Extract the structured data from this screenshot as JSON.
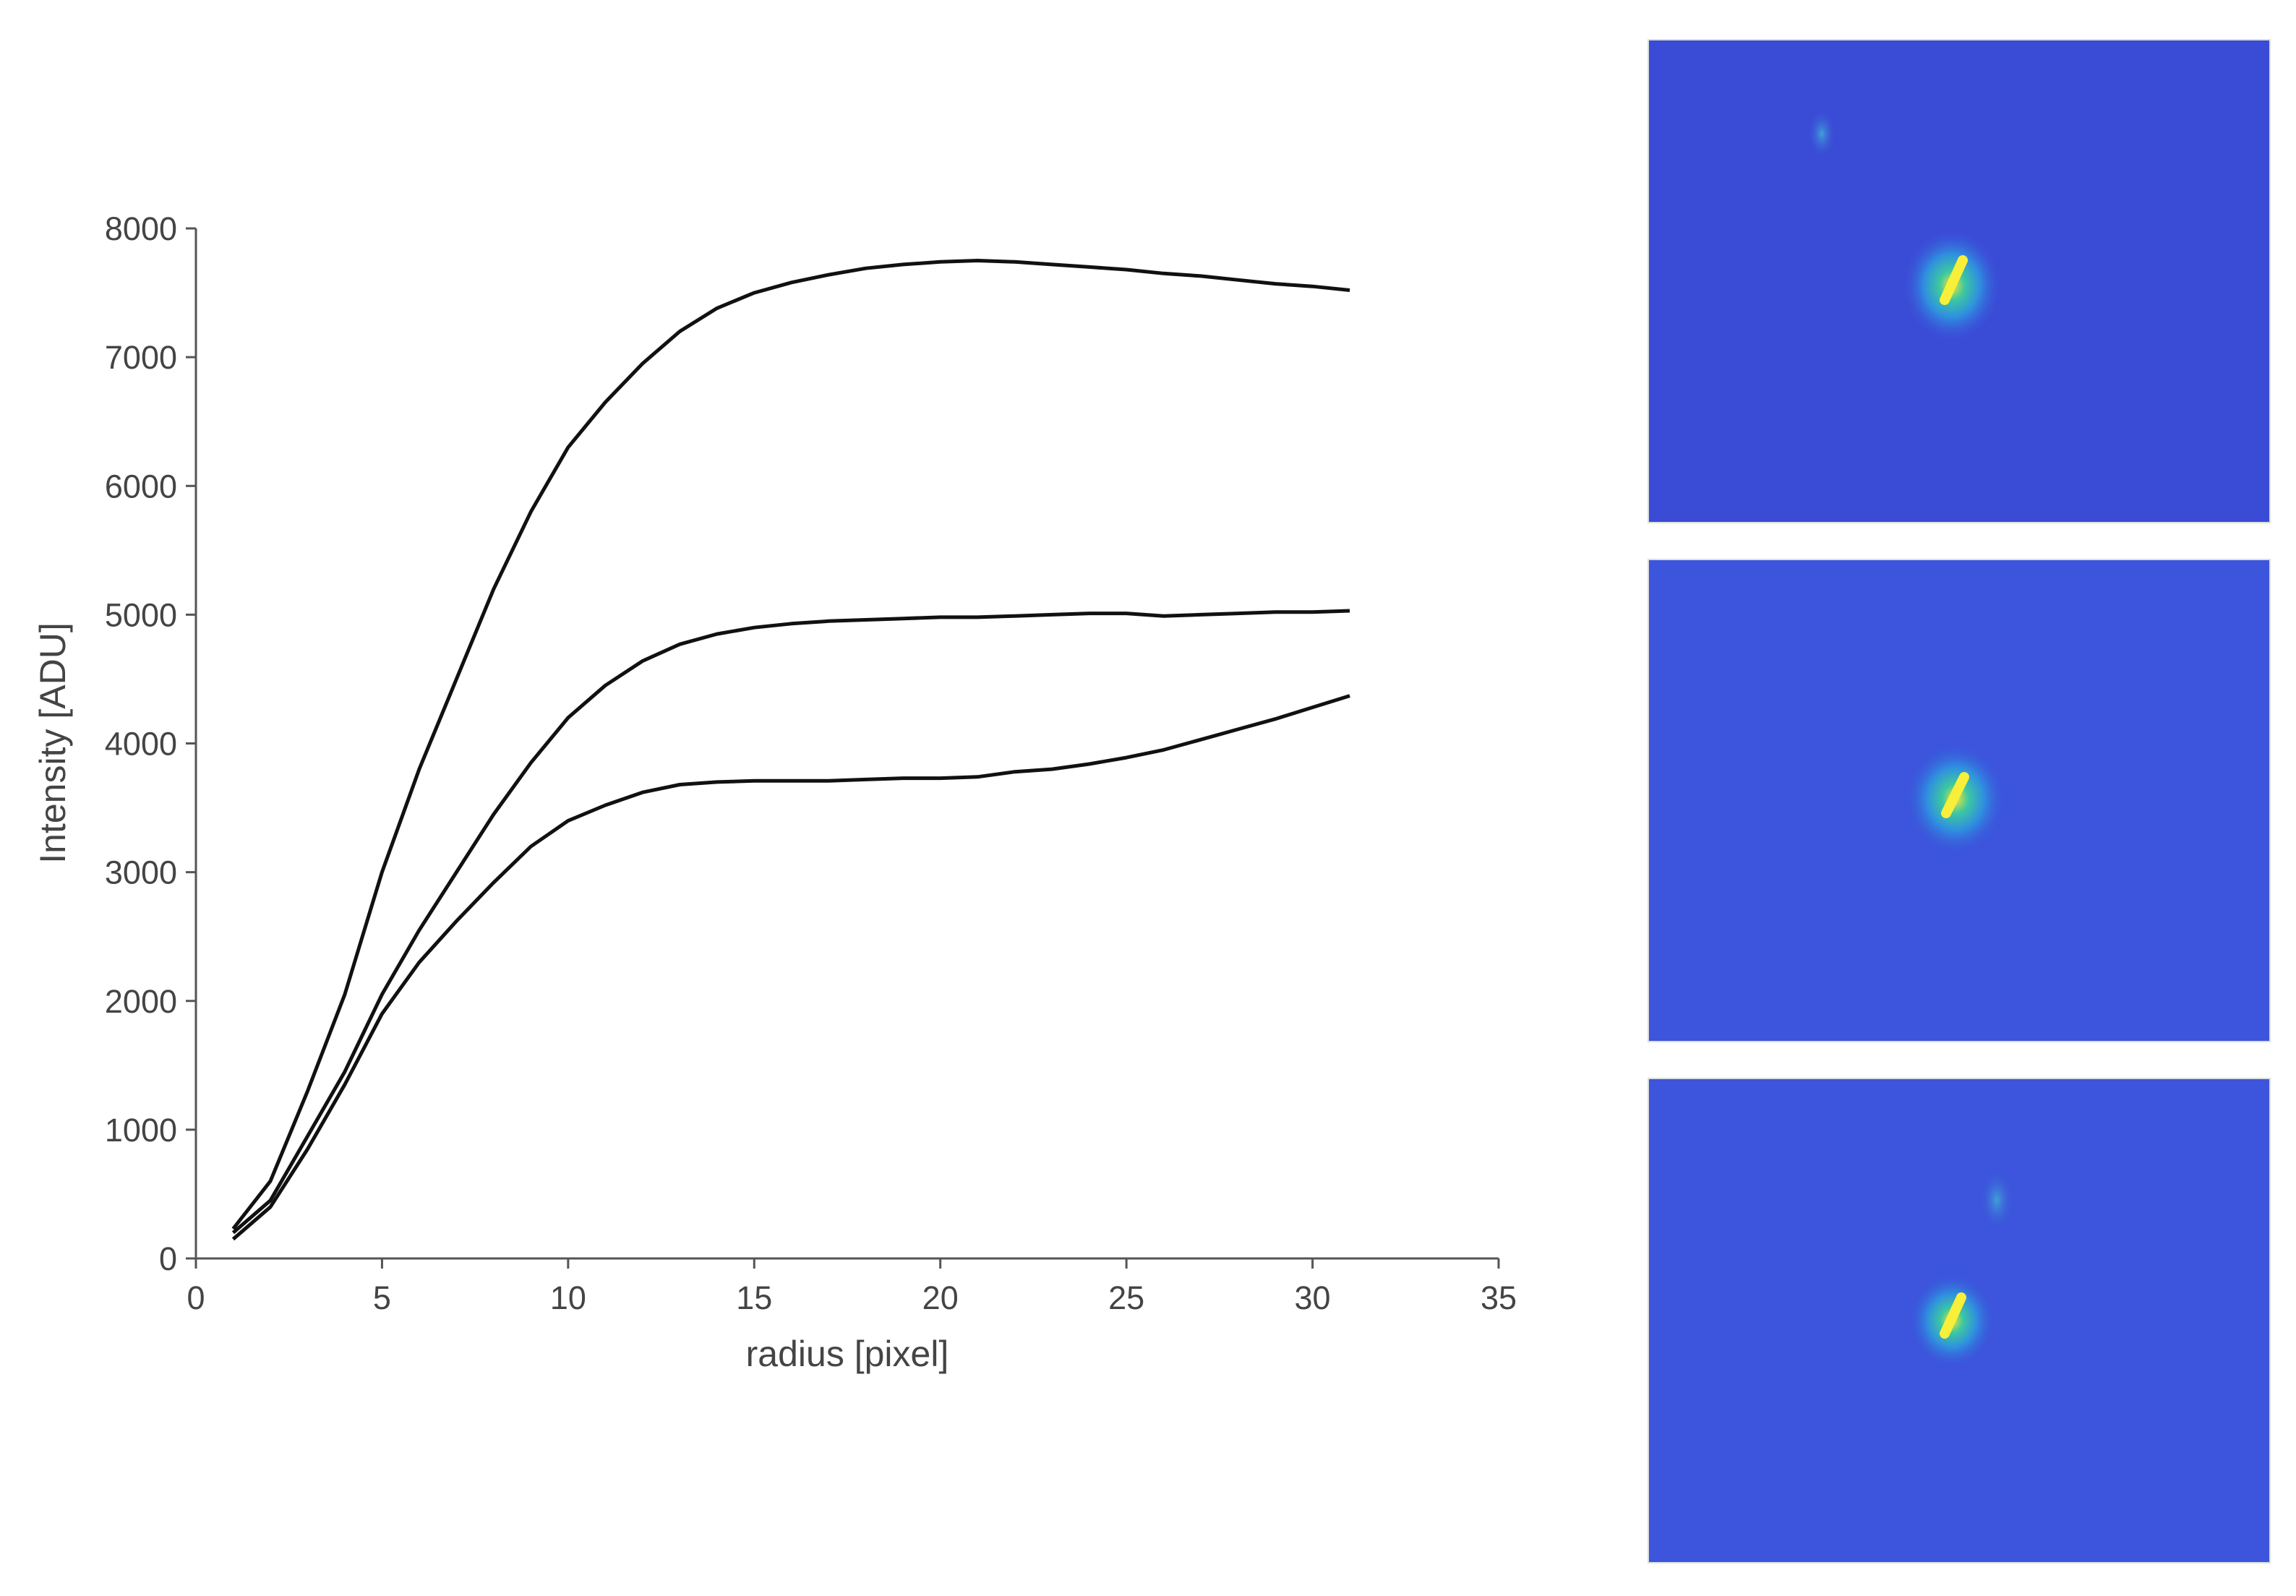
{
  "chart_data": {
    "type": "line",
    "xlabel": "radius [pixel]",
    "ylabel": "Intensity [ADU]",
    "x": [
      1,
      2,
      3,
      4,
      5,
      6,
      7,
      8,
      9,
      10,
      11,
      12,
      13,
      14,
      15,
      16,
      17,
      18,
      19,
      20,
      21,
      22,
      23,
      24,
      25,
      26,
      27,
      28,
      29,
      30,
      31
    ],
    "series": [
      {
        "color": "#111111",
        "values": [
          230,
          600,
          1300,
          2050,
          3000,
          3800,
          4500,
          5200,
          5800,
          6300,
          6650,
          6950,
          7200,
          7380,
          7500,
          7580,
          7640,
          7690,
          7720,
          7740,
          7750,
          7740,
          7720,
          7700,
          7680,
          7650,
          7630,
          7600,
          7570,
          7550,
          7520
        ]
      },
      {
        "color": "#111111",
        "values": [
          200,
          450,
          950,
          1450,
          2050,
          2550,
          3000,
          3450,
          3850,
          4200,
          4450,
          4640,
          4770,
          4850,
          4900,
          4930,
          4950,
          4960,
          4970,
          4980,
          4980,
          4990,
          5000,
          5010,
          5010,
          4990,
          5000,
          5010,
          5020,
          5020,
          5030
        ]
      },
      {
        "color": "#111111",
        "values": [
          150,
          400,
          850,
          1350,
          1900,
          2300,
          2620,
          2920,
          3200,
          3400,
          3520,
          3620,
          3680,
          3700,
          3710,
          3710,
          3710,
          3720,
          3730,
          3730,
          3740,
          3780,
          3800,
          3840,
          3890,
          3950,
          4030,
          4110,
          4190,
          4280,
          4370
        ]
      }
    ],
    "xlim": [
      0,
      35
    ],
    "ylim": [
      0,
      8000
    ],
    "xticks": [
      0,
      5,
      10,
      15,
      20,
      25,
      30,
      35
    ],
    "yticks": [
      0,
      1000,
      2000,
      3000,
      4000,
      5000,
      6000,
      7000,
      8000
    ]
  }
}
